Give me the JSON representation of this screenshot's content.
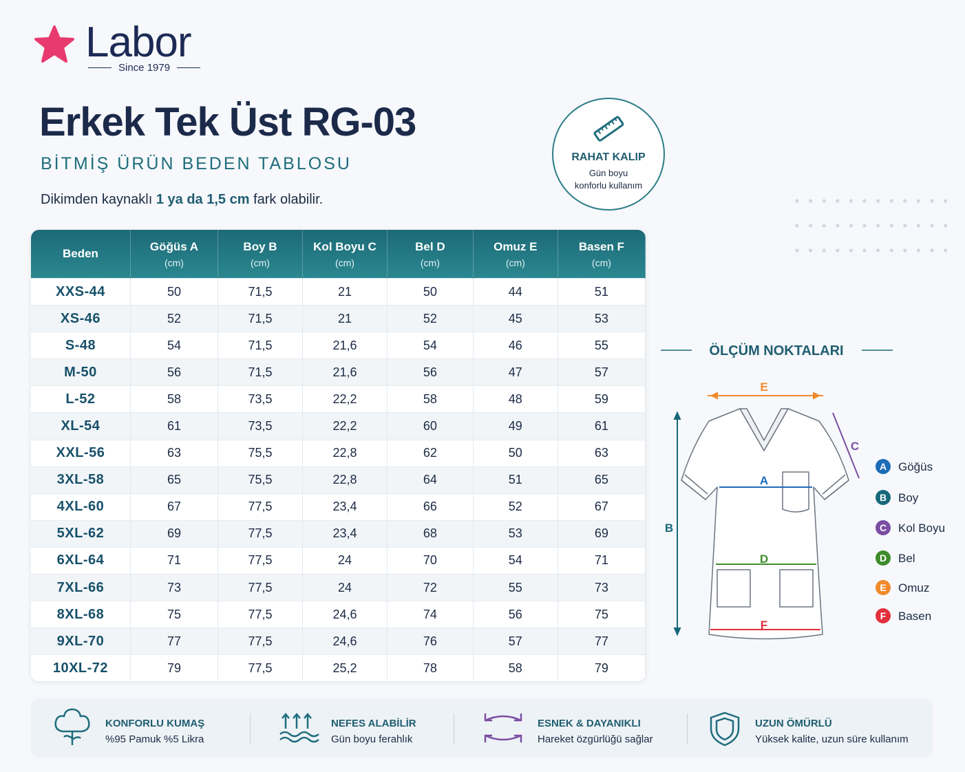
{
  "brand": {
    "name": "Labor",
    "since": "Since 1979"
  },
  "title": "Erkek Tek Üst RG-03",
  "subtitle": "BİTMİŞ ÜRÜN BEDEN TABLOSU",
  "note": {
    "before": "Dikimden kaynaklı",
    "bold": "1 ya da 1,5 cm",
    "after": "fark olabilir."
  },
  "badge": {
    "title": "RAHAT KALIP",
    "line1": "Gün boyu",
    "line2": "konforlu kullanım"
  },
  "table": {
    "headers": [
      {
        "label": "Beden"
      },
      {
        "label": "Göğüs A",
        "unit": "(cm)"
      },
      {
        "label": "Boy B",
        "unit": "(cm)"
      },
      {
        "label": "Kol Boyu C",
        "unit": "(cm)"
      },
      {
        "label": "Bel D",
        "unit": "(cm)"
      },
      {
        "label": "Omuz E",
        "unit": "(cm)"
      },
      {
        "label": "Basen F",
        "unit": "(cm)"
      }
    ],
    "rows": [
      [
        "XXS-44",
        "50",
        "71,5",
        "21",
        "50",
        "44",
        "51"
      ],
      [
        "XS-46",
        "52",
        "71,5",
        "21",
        "52",
        "45",
        "53"
      ],
      [
        "S-48",
        "54",
        "71,5",
        "21,6",
        "54",
        "46",
        "55"
      ],
      [
        "M-50",
        "56",
        "71,5",
        "21,6",
        "56",
        "47",
        "57"
      ],
      [
        "L-52",
        "58",
        "73,5",
        "22,2",
        "58",
        "48",
        "59"
      ],
      [
        "XL-54",
        "61",
        "73,5",
        "22,2",
        "60",
        "49",
        "61"
      ],
      [
        "XXL-56",
        "63",
        "75,5",
        "22,8",
        "62",
        "50",
        "63"
      ],
      [
        "3XL-58",
        "65",
        "75,5",
        "22,8",
        "64",
        "51",
        "65"
      ],
      [
        "4XL-60",
        "67",
        "77,5",
        "23,4",
        "66",
        "52",
        "67"
      ],
      [
        "5XL-62",
        "69",
        "77,5",
        "23,4",
        "68",
        "53",
        "69"
      ],
      [
        "6XL-64",
        "71",
        "77,5",
        "24",
        "70",
        "54",
        "71"
      ],
      [
        "7XL-66",
        "73",
        "77,5",
        "24",
        "72",
        "55",
        "73"
      ],
      [
        "8XL-68",
        "75",
        "77,5",
        "24,6",
        "74",
        "56",
        "75"
      ],
      [
        "9XL-70",
        "77",
        "77,5",
        "24,6",
        "76",
        "57",
        "77"
      ],
      [
        "10XL-72",
        "79",
        "77,5",
        "25,2",
        "78",
        "58",
        "79"
      ]
    ]
  },
  "measure": {
    "title": "ÖLÇÜM NOKTALARI",
    "points": [
      {
        "letter": "A",
        "label": "Göğüs",
        "color": "#1e6cb8"
      },
      {
        "letter": "B",
        "label": "Boy",
        "color": "#17687a"
      },
      {
        "letter": "C",
        "label": "Kol Boyu",
        "color": "#7a4ea3"
      },
      {
        "letter": "D",
        "label": "Bel",
        "color": "#3e8c2b"
      },
      {
        "letter": "E",
        "label": "Omuz",
        "color": "#f08a2c"
      },
      {
        "letter": "F",
        "label": "Basen",
        "color": "#e2303c"
      }
    ]
  },
  "features": [
    {
      "title": "KONFORLU KUMAŞ",
      "text": "%95 Pamuk %5 Likra"
    },
    {
      "title": "NEFES ALABİLİR",
      "text": "Gün boyu ferahlık"
    },
    {
      "title": "ESNEK & DAYANIKLI",
      "text": "Hareket özgürlüğü sağlar"
    },
    {
      "title": "UZUN ÖMÜRLÜ",
      "text": "Yüksek kalite, uzun süre kullanım"
    }
  ]
}
